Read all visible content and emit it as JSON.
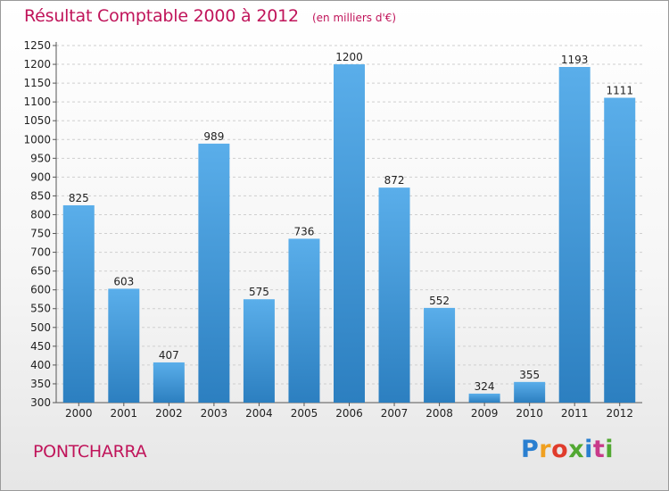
{
  "title": "Résultat Comptable 2000 à 2012",
  "subtitle": "(en milliers d'€)",
  "commune": "PONTCHARRA",
  "logo": {
    "letters": [
      "P",
      "r",
      "o",
      "x",
      "i",
      "t",
      "i"
    ],
    "colors": [
      "#2a7fd0",
      "#f0a020",
      "#e03c2c",
      "#52a832",
      "#2a7fd0",
      "#c93a8a",
      "#52a832"
    ]
  },
  "colors": {
    "accent": "#c0145a",
    "bar_top": "#5aaeea",
    "bar_bottom": "#2c7fc0",
    "grid": "#cfcfcf"
  },
  "chart_data": {
    "type": "bar",
    "categories": [
      "2000",
      "2001",
      "2002",
      "2003",
      "2004",
      "2005",
      "2006",
      "2007",
      "2008",
      "2009",
      "2010",
      "2011",
      "2012"
    ],
    "values": [
      825,
      603,
      407,
      989,
      575,
      736,
      1200,
      872,
      552,
      324,
      355,
      1193,
      1111
    ],
    "yticks": [
      300,
      350,
      400,
      450,
      500,
      550,
      600,
      650,
      700,
      750,
      800,
      850,
      900,
      950,
      1000,
      1050,
      1100,
      1150,
      1200,
      1250
    ],
    "ylim": [
      300,
      1250
    ],
    "grid": true,
    "legend": "none"
  }
}
